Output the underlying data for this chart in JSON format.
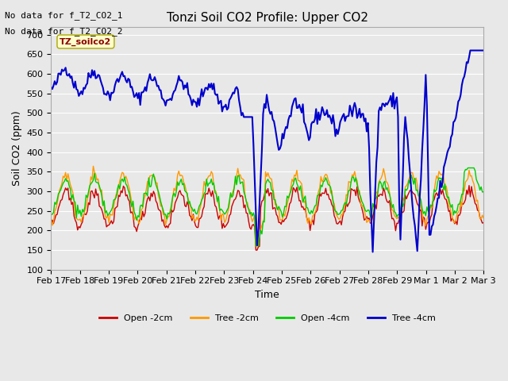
{
  "title": "Tonzi Soil CO2 Profile: Upper CO2",
  "ylabel": "Soil CO2 (ppm)",
  "xlabel": "Time",
  "ylim": [
    100,
    720
  ],
  "yticks": [
    100,
    150,
    200,
    250,
    300,
    350,
    400,
    450,
    500,
    550,
    600,
    650,
    700
  ],
  "background_color": "#e8e8e8",
  "no_data_text1": "No data for f_T2_CO2_1",
  "no_data_text2": "No data for f_T2_CO2_2",
  "label_text": "TZ_soilco2",
  "legend_labels": [
    "Open -2cm",
    "Tree -2cm",
    "Open -4cm",
    "Tree -4cm"
  ],
  "line_colors": {
    "open_2cm": "#cc0000",
    "tree_2cm": "#ff9900",
    "open_4cm": "#00cc00",
    "tree_4cm": "#0000cc"
  },
  "x_tick_labels": [
    "Feb 17",
    "Feb 18",
    "Feb 19",
    "Feb 20",
    "Feb 21",
    "Feb 22",
    "Feb 23",
    "Feb 24",
    "Feb 25",
    "Feb 26",
    "Feb 27",
    "Feb 28",
    "Feb 29",
    "Mar 1",
    "Mar 2",
    "Mar 3"
  ],
  "n_days": 15,
  "pts_per_day": 24
}
